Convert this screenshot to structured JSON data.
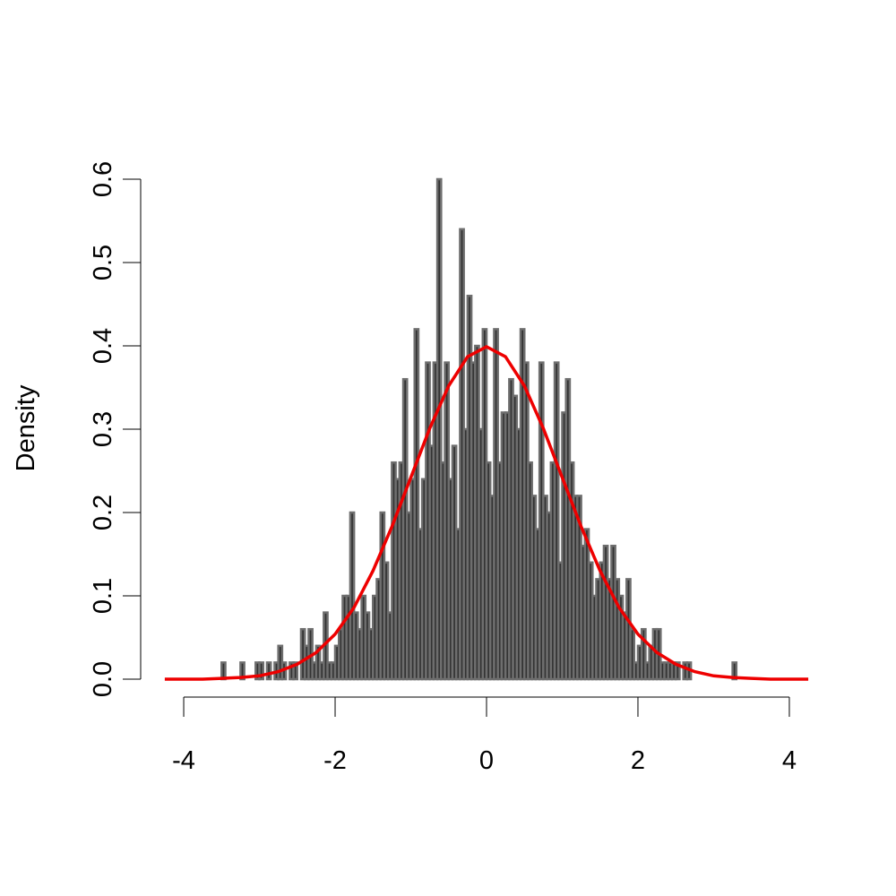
{
  "chart_data": {
    "type": "histogram",
    "y_label": "Density",
    "bins": [
      -3.5,
      -3.45,
      -3.4,
      -3.35,
      -3.3,
      -3.25,
      -3.2,
      -3.15,
      -3.1,
      -3.05,
      -3,
      -2.95,
      -2.9,
      -2.85,
      -2.8,
      -2.75,
      -2.7,
      -2.65,
      -2.6,
      -2.55,
      -2.5,
      -2.45,
      -2.4,
      -2.35,
      -2.3,
      -2.25,
      -2.2,
      -2.15,
      -2.1,
      -2.05,
      -2,
      -1.95,
      -1.9,
      -1.85,
      -1.8,
      -1.75,
      -1.7,
      -1.65,
      -1.6,
      -1.55,
      -1.5,
      -1.45,
      -1.4,
      -1.35,
      -1.3,
      -1.25,
      -1.2,
      -1.15,
      -1.1,
      -1.05,
      -1,
      -0.95,
      -0.9,
      -0.85,
      -0.8,
      -0.75,
      -0.7,
      -0.65,
      -0.6,
      -0.55,
      -0.5,
      -0.45,
      -0.4,
      -0.35,
      -0.3,
      -0.25,
      -0.2,
      -0.15,
      -0.1,
      -0.05,
      0,
      0.05,
      0.1,
      0.15,
      0.2,
      0.25,
      0.3,
      0.35,
      0.4,
      0.45,
      0.5,
      0.55,
      0.6,
      0.65,
      0.7,
      0.75,
      0.8,
      0.85,
      0.9,
      0.95,
      1,
      1.05,
      1.1,
      1.15,
      1.2,
      1.25,
      1.3,
      1.35,
      1.4,
      1.45,
      1.5,
      1.55,
      1.6,
      1.65,
      1.7,
      1.75,
      1.8,
      1.85,
      1.9,
      1.95,
      2,
      2.05,
      2.1,
      2.15,
      2.2,
      2.25,
      2.3,
      2.35,
      2.4,
      2.45,
      2.5,
      2.55,
      2.6,
      2.65,
      2.7,
      2.75,
      2.8,
      2.85,
      2.9,
      2.95,
      3,
      3.05,
      3.1,
      3.15,
      3.2,
      3.25,
      3.3
    ],
    "values": [
      0.02,
      0,
      0,
      0,
      0,
      0.02,
      0,
      0,
      0,
      0.02,
      0.02,
      0,
      0.02,
      0,
      0.02,
      0.04,
      0.02,
      0,
      0.02,
      0.02,
      0,
      0.06,
      0.04,
      0.06,
      0.02,
      0.04,
      0.02,
      0.08,
      0.02,
      0.02,
      0.04,
      0.06,
      0.1,
      0.1,
      0.2,
      0.08,
      0.06,
      0.1,
      0.08,
      0.06,
      0.1,
      0.12,
      0.2,
      0.14,
      0.08,
      0.26,
      0.24,
      0.26,
      0.36,
      0.2,
      0.24,
      0.42,
      0.18,
      0.24,
      0.38,
      0.28,
      0.38,
      0.6,
      0.26,
      0.38,
      0.24,
      0.28,
      0.18,
      0.54,
      0.3,
      0.46,
      0.38,
      0.4,
      0.3,
      0.42,
      0.26,
      0.22,
      0.42,
      0.26,
      0.32,
      0.32,
      0.36,
      0.34,
      0.3,
      0.42,
      0.38,
      0.26,
      0.22,
      0.18,
      0.38,
      0.22,
      0.2,
      0.26,
      0.38,
      0.14,
      0.32,
      0.36,
      0.26,
      0.22,
      0.22,
      0.16,
      0.18,
      0.14,
      0.1,
      0.12,
      0.14,
      0.16,
      0.12,
      0.16,
      0.12,
      0.1,
      0.08,
      0.12,
      0.06,
      0.02,
      0.04,
      0.06,
      0.02,
      0.04,
      0.06,
      0.06,
      0.02,
      0.02,
      0.02,
      0.02,
      0.02,
      0,
      0.02,
      0.02,
      0,
      0,
      0,
      0,
      0,
      0,
      0,
      0,
      0,
      0,
      0,
      0.02,
      0.02
    ],
    "color": "#333333",
    "curve": {
      "color": "#ee0000",
      "x": [
        -4.25,
        -4,
        -3.75,
        -3.5,
        -3.25,
        -3,
        -2.75,
        -2.5,
        -2.25,
        -2,
        -1.75,
        -1.5,
        -1.25,
        -1,
        -0.75,
        -0.5,
        -0.25,
        0,
        0.25,
        0.5,
        0.75,
        1,
        1.25,
        1.5,
        1.75,
        2,
        2.25,
        2.5,
        2.75,
        3,
        3.25,
        3.5,
        3.75,
        4,
        4.25
      ],
      "values": [
        0,
        0,
        0,
        0.001,
        0.002,
        0.004,
        0.009,
        0.018,
        0.032,
        0.054,
        0.086,
        0.13,
        0.183,
        0.242,
        0.301,
        0.352,
        0.387,
        0.399,
        0.387,
        0.352,
        0.301,
        0.242,
        0.183,
        0.13,
        0.086,
        0.054,
        0.032,
        0.018,
        0.009,
        0.004,
        0.002,
        0.001,
        0,
        0,
        0
      ]
    },
    "xlim": [
      -4.32,
      4.32
    ],
    "xticks": [
      -4,
      -2,
      0,
      2,
      4
    ],
    "ylim": [
      0,
      0.6
    ],
    "yticks": [
      {
        "value": 0,
        "label": "0.0"
      },
      {
        "value": 0.1,
        "label": "0.1"
      },
      {
        "value": 0.2,
        "label": "0.2"
      },
      {
        "value": 0.3,
        "label": "0.3"
      },
      {
        "value": 0.4,
        "label": "0.4"
      },
      {
        "value": 0.5,
        "label": "0.5"
      },
      {
        "value": 0.6,
        "label": "0.6"
      }
    ]
  }
}
